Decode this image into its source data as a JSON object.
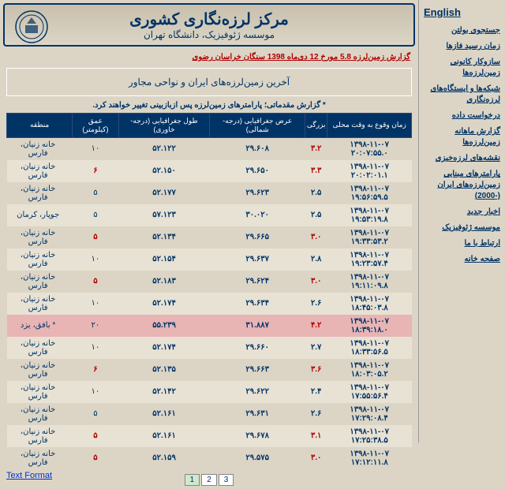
{
  "header": {
    "title": "مرکز لرزه‌نگاری کشوری",
    "subtitle": "موسسه ژئوفیزیک، دانشگاه تهران"
  },
  "alert": "گزارش زمین‌لرزه 5.8 مورخ 12 دی‌ماه 1398 سنگان خراسان رضوی",
  "subtitle_box": "آخرین زمین‌لرزه‌های ایران و نواحی مجاور",
  "note": "* گزارش مقدماتی؛ پارامترهای زمین‌لرزه پس ازبازبینی تغییر خواهند کرد.",
  "sidebar": {
    "english": "English",
    "items": [
      "جستجوی بولتن",
      "زمان رسید فازها",
      "سازوکار کانونی زمین‌لرزه‌ها",
      "شبکه‌ها و ایستگاه‌های لرزه‌نگاری",
      "درخواست داده",
      "گزارش ماهانه زمین‌لرزه‌ها",
      "نقشه‌های لرزه‌خیزی",
      "پارامترهای مبنایی زمین‌لرزه‌های ایران (-2000)",
      "اخبار جدید",
      "موسسه ژئوفیزیک",
      "ارتباط با ما",
      "صفحه خانه"
    ]
  },
  "table": {
    "headers": [
      "زمان وقوع به وقت محلی",
      "بزرگی",
      "عرض جغرافیایی (درجه-شمالی)",
      "طول جغرافیایی (درجه-خاوری)",
      "عمق (کیلومتر)",
      "منطقه"
    ],
    "rows": [
      {
        "t": "۱۳۹۸-۱۱-۰۷ ۲۰:۰۷:۵۵.۰",
        "m": "۳.۲",
        "mr": true,
        "la": "۲۹.۶۰۸",
        "lo": "۵۲.۱۲۲",
        "d": "۱۰",
        "dr": false,
        "r": "خانه زنیان، فارس",
        "hl": false
      },
      {
        "t": "۱۳۹۸-۱۱-۰۷ ۲۰:۰۲:۰۱.۱",
        "m": "۳.۳",
        "mr": true,
        "la": "۲۹.۶۵۰",
        "lo": "۵۲.۱۵۰",
        "d": "۶",
        "dr": true,
        "r": "خانه زنیان، فارس",
        "hl": false
      },
      {
        "t": "۱۳۹۸-۱۱-۰۷ ۱۹:۵۶:۵۹.۵",
        "m": "۲.۵",
        "mr": false,
        "la": "۲۹.۶۲۳",
        "lo": "۵۲.۱۷۷",
        "d": "۵",
        "dr": false,
        "r": "خانه زنیان، فارس",
        "hl": false
      },
      {
        "t": "۱۳۹۸-۱۱-۰۷ ۱۹:۵۳:۱۹.۸",
        "m": "۲.۵",
        "mr": false,
        "la": "۳۰.۰۲۰",
        "lo": "۵۷.۱۲۳",
        "d": "۵",
        "dr": false,
        "r": "جوپار، کرمان",
        "hl": false
      },
      {
        "t": "۱۳۹۸-۱۱-۰۷ ۱۹:۳۳:۵۳.۲",
        "m": "۳.۰",
        "mr": true,
        "la": "۲۹.۶۶۵",
        "lo": "۵۲.۱۳۴",
        "d": "۵",
        "dr": true,
        "r": "خانه زنیان، فارس",
        "hl": false
      },
      {
        "t": "۱۳۹۸-۱۱-۰۷ ۱۹:۲۳:۵۷.۴",
        "m": "۲.۸",
        "mr": false,
        "la": "۲۹.۶۳۷",
        "lo": "۵۲.۱۵۴",
        "d": "۱۰",
        "dr": false,
        "r": "خانه زنیان، فارس",
        "hl": false
      },
      {
        "t": "۱۳۹۸-۱۱-۰۷ ۱۹:۱۱:۰۹.۸",
        "m": "۳.۰",
        "mr": true,
        "la": "۲۹.۶۲۴",
        "lo": "۵۲.۱۸۳",
        "d": "۵",
        "dr": true,
        "r": "خانه زنیان، فارس",
        "hl": false
      },
      {
        "t": "۱۳۹۸-۱۱-۰۷ ۱۸:۴۵:۰۳.۸",
        "m": "۲.۶",
        "mr": false,
        "la": "۲۹.۶۳۴",
        "lo": "۵۲.۱۷۴",
        "d": "۱۰",
        "dr": false,
        "r": "خانه زنیان، فارس",
        "hl": false
      },
      {
        "t": "۱۳۹۸-۱۱-۰۷ ۱۸:۳۹:۱۸.۰",
        "m": "۴.۲",
        "mr": true,
        "la": "۳۱.۸۸۷",
        "lo": "۵۵.۲۳۹",
        "d": "۲۰",
        "dr": false,
        "r": "بافق، یزد *",
        "hl": true
      },
      {
        "t": "۱۳۹۸-۱۱-۰۷ ۱۸:۳۳:۵۶.۵",
        "m": "۲.۷",
        "mr": false,
        "la": "۲۹.۶۶۰",
        "lo": "۵۲.۱۷۴",
        "d": "۱۰",
        "dr": false,
        "r": "خانه زنیان، فارس",
        "hl": false
      },
      {
        "t": "۱۳۹۸-۱۱-۰۷ ۱۸:۰۳:۰۵.۲",
        "m": "۳.۶",
        "mr": true,
        "la": "۲۹.۶۶۳",
        "lo": "۵۲.۱۳۵",
        "d": "۶",
        "dr": true,
        "r": "خانه زنیان، فارس",
        "hl": false
      },
      {
        "t": "۱۳۹۸-۱۱-۰۷ ۱۷:۵۵:۵۶.۴",
        "m": "۲.۴",
        "mr": false,
        "la": "۲۹.۶۲۲",
        "lo": "۵۲.۱۴۲",
        "d": "۱۰",
        "dr": false,
        "r": "خانه زنیان، فارس",
        "hl": false
      },
      {
        "t": "۱۳۹۸-۱۱-۰۷ ۱۷:۲۹:۰۸.۴",
        "m": "۲.۶",
        "mr": false,
        "la": "۲۹.۶۳۱",
        "lo": "۵۲.۱۶۱",
        "d": "۵",
        "dr": false,
        "r": "خانه زنیان، فارس",
        "hl": false
      },
      {
        "t": "۱۳۹۸-۱۱-۰۷ ۱۷:۲۵:۳۸.۵",
        "m": "۳.۱",
        "mr": true,
        "la": "۲۹.۶۷۸",
        "lo": "۵۲.۱۶۱",
        "d": "۵",
        "dr": true,
        "r": "خانه زنیان، فارس",
        "hl": false
      },
      {
        "t": "۱۳۹۸-۱۱-۰۷ ۱۷:۱۲:۱۱.۸",
        "m": "۳.۰",
        "mr": true,
        "la": "۲۹.۵۷۵",
        "lo": "۵۲.۱۵۹",
        "d": "۵",
        "dr": true,
        "r": "خانه زنیان، فارس",
        "hl": false
      }
    ]
  },
  "footer": {
    "text_format": "Text Format",
    "pages": [
      "1",
      "2",
      "3"
    ]
  }
}
